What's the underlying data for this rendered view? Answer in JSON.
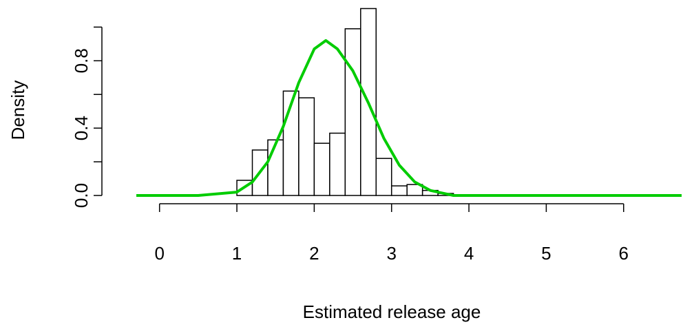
{
  "chart_data": {
    "type": "histogram",
    "xlabel": "Estimated release age",
    "ylabel": "Density",
    "bins": [
      1.0,
      1.2,
      1.4,
      1.6,
      1.8,
      2.0,
      2.2,
      2.4,
      2.6,
      2.8,
      3.0,
      3.2,
      3.4,
      3.6,
      3.8
    ],
    "values": [
      0.09,
      0.27,
      0.33,
      0.62,
      0.58,
      0.31,
      0.37,
      0.99,
      1.11,
      0.22,
      0.057,
      0.065,
      0.03,
      0.012
    ],
    "bar_color": "#ffffff",
    "edge_color": "#000000",
    "density": {
      "color": "#00cc00",
      "x": [
        -0.3,
        0.5,
        1.0,
        1.2,
        1.4,
        1.6,
        1.8,
        2.0,
        2.15,
        2.3,
        2.5,
        2.7,
        2.9,
        3.1,
        3.3,
        3.5,
        3.8,
        4.5,
        6.75
      ],
      "values": [
        0,
        0,
        0.02,
        0.08,
        0.2,
        0.41,
        0.67,
        0.87,
        0.92,
        0.87,
        0.74,
        0.55,
        0.34,
        0.18,
        0.08,
        0.03,
        0,
        0,
        0
      ]
    },
    "xlim": [
      -0.3,
      6.75
    ],
    "ylim": [
      0,
      1.12
    ],
    "xticks": [
      0,
      1,
      2,
      3,
      4,
      5,
      6
    ],
    "yticks": [
      {
        "value": 0,
        "label": "0.0"
      },
      {
        "value": 0.4,
        "label": "0.4"
      },
      {
        "value": 0.8,
        "label": "0.8"
      }
    ],
    "yminor_ticks": [
      0.2,
      0.6,
      1.0
    ]
  }
}
